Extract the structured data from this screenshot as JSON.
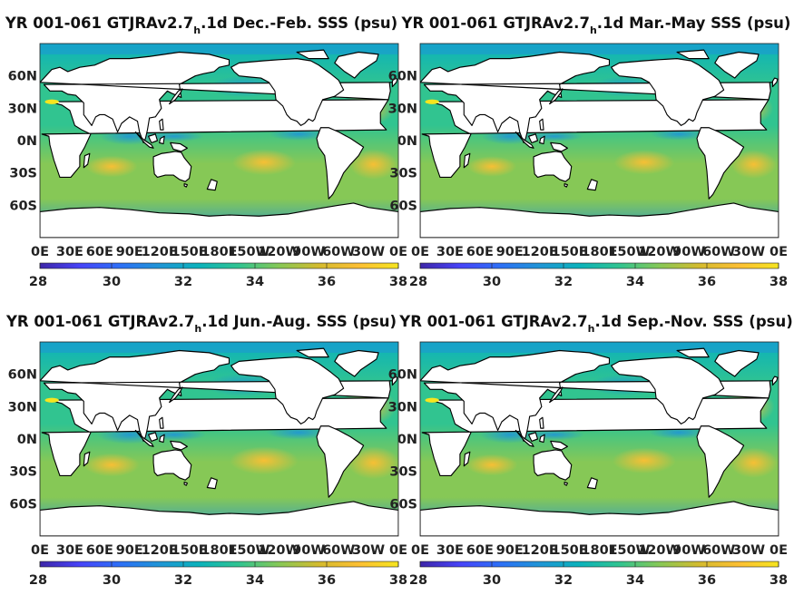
{
  "chart_data": [
    {
      "type": "heatmap",
      "title_pre": "YR 001-061 GTJRAv2.7",
      "title_sub": "h",
      "title_post": ".1d Dec.-Feb. SSS (psu)",
      "season": "Dec.-Feb.",
      "variable": "SSS",
      "units": "psu",
      "x_ticks": [
        "0E",
        "30E",
        "60E",
        "90E",
        "120E",
        "150E",
        "180E",
        "150W",
        "120W",
        "90W",
        "60W",
        "30W",
        "0E"
      ],
      "y_ticks": [
        "60N",
        "30N",
        "0N",
        "30S",
        "60S"
      ],
      "clim": [
        28,
        38
      ],
      "colorbar_ticks": [
        "28",
        "30",
        "32",
        "34",
        "36",
        "38"
      ]
    },
    {
      "type": "heatmap",
      "title_pre": "YR 001-061 GTJRAv2.7",
      "title_sub": "h",
      "title_post": ".1d Mar.-May SSS (psu)",
      "season": "Mar.-May",
      "variable": "SSS",
      "units": "psu",
      "x_ticks": [
        "0E",
        "30E",
        "60E",
        "90E",
        "120E",
        "150E",
        "180E",
        "150W",
        "120W",
        "90W",
        "60W",
        "30W",
        "0E"
      ],
      "y_ticks": [
        "60N",
        "30N",
        "0N",
        "30S",
        "60S"
      ],
      "clim": [
        28,
        38
      ],
      "colorbar_ticks": [
        "28",
        "30",
        "32",
        "34",
        "36",
        "38"
      ]
    },
    {
      "type": "heatmap",
      "title_pre": "YR 001-061 GTJRAv2.7",
      "title_sub": "h",
      "title_post": ".1d Jun.-Aug. SSS (psu)",
      "season": "Jun.-Aug.",
      "variable": "SSS",
      "units": "psu",
      "x_ticks": [
        "0E",
        "30E",
        "60E",
        "90E",
        "120E",
        "150E",
        "180E",
        "150W",
        "120W",
        "90W",
        "60W",
        "30W",
        "0E"
      ],
      "y_ticks": [
        "60N",
        "30N",
        "0N",
        "30S",
        "60S"
      ],
      "clim": [
        28,
        38
      ],
      "colorbar_ticks": [
        "28",
        "30",
        "32",
        "34",
        "36",
        "38"
      ]
    },
    {
      "type": "heatmap",
      "title_pre": "YR 001-061 GTJRAv2.7",
      "title_sub": "h",
      "title_post": ".1d Sep.-Nov. SSS (psu)",
      "season": "Sep.-Nov.",
      "variable": "SSS",
      "units": "psu",
      "x_ticks": [
        "0E",
        "30E",
        "60E",
        "90E",
        "120E",
        "150E",
        "180E",
        "150W",
        "120W",
        "90W",
        "60W",
        "30W",
        "0E"
      ],
      "y_ticks": [
        "60N",
        "30N",
        "0N",
        "30S",
        "60S"
      ],
      "clim": [
        28,
        38
      ],
      "colorbar_ticks": [
        "28",
        "30",
        "32",
        "34",
        "36",
        "38"
      ]
    }
  ],
  "colormap": [
    "#3e26a8",
    "#4743f8",
    "#2d6ff7",
    "#1f95d6",
    "#0bb2bb",
    "#31c490",
    "#86c856",
    "#d4bb2e",
    "#fcbf33",
    "#f6e51f"
  ]
}
